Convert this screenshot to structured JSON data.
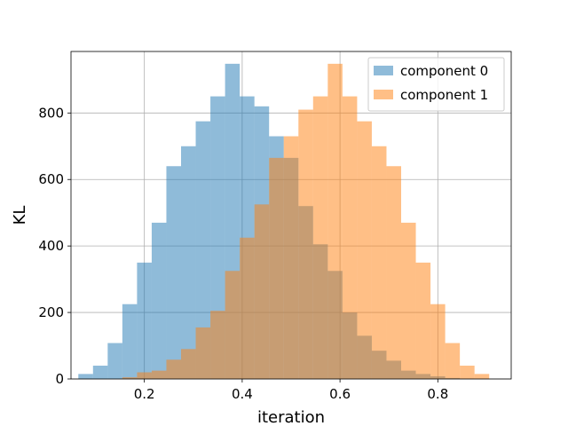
{
  "chart_data": {
    "type": "histogram",
    "xlabel": "iteration",
    "ylabel": "KL",
    "xlim": [
      0.05,
      0.95
    ],
    "ylim": [
      0,
      985
    ],
    "xticks": [
      0.2,
      0.4,
      0.6,
      0.8
    ],
    "xtick_labels": [
      "0.2",
      "0.4",
      "0.6",
      "0.8"
    ],
    "yticks": [
      0,
      200,
      400,
      600,
      800
    ],
    "ytick_labels": [
      "0",
      "200",
      "400",
      "600",
      "800"
    ],
    "grid": true,
    "legend_position": "top-right",
    "series": [
      {
        "name": "component 0",
        "color": "#1f77b4",
        "alpha": 0.5,
        "bin_edges": [
          0.065,
          0.095,
          0.125,
          0.155,
          0.185,
          0.215,
          0.245,
          0.275,
          0.305,
          0.335,
          0.365,
          0.395,
          0.425,
          0.455,
          0.485,
          0.515,
          0.545,
          0.575,
          0.605,
          0.635,
          0.665,
          0.695,
          0.725,
          0.755,
          0.785,
          0.815,
          0.845,
          0.875,
          0.905,
          0.935
        ],
        "counts": [
          15,
          40,
          108,
          225,
          350,
          470,
          640,
          700,
          775,
          850,
          948,
          850,
          820,
          730,
          665,
          520,
          405,
          325,
          200,
          130,
          85,
          55,
          25,
          15,
          8,
          3,
          1,
          0,
          0
        ]
      },
      {
        "name": "component 1",
        "color": "#ff7f0e",
        "alpha": 0.5,
        "bin_edges": [
          0.065,
          0.095,
          0.125,
          0.155,
          0.185,
          0.215,
          0.245,
          0.275,
          0.305,
          0.335,
          0.365,
          0.395,
          0.425,
          0.455,
          0.485,
          0.515,
          0.545,
          0.575,
          0.605,
          0.635,
          0.665,
          0.695,
          0.725,
          0.755,
          0.785,
          0.815,
          0.845,
          0.875,
          0.905,
          0.935
        ],
        "counts": [
          0,
          0,
          0,
          5,
          20,
          25,
          58,
          90,
          155,
          205,
          325,
          425,
          525,
          665,
          730,
          810,
          850,
          948,
          850,
          775,
          700,
          640,
          470,
          350,
          225,
          108,
          40,
          15,
          0
        ]
      }
    ]
  }
}
